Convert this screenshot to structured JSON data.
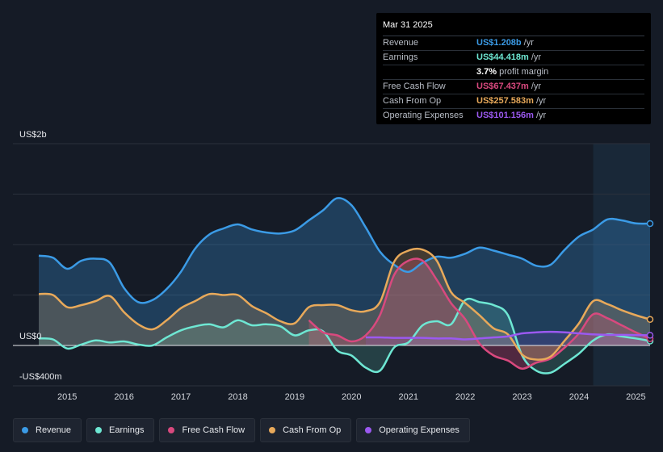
{
  "tooltip": {
    "date": "Mar 31 2025",
    "rows": [
      {
        "label": "Revenue",
        "value": "US$1.208b",
        "unit": "/yr",
        "color": "#3b9be6"
      },
      {
        "label": "Earnings",
        "value": "US$44.418m",
        "unit": "/yr",
        "color": "#6ee7d3"
      },
      {
        "label": "",
        "value": "3.7%",
        "unit": "profit margin",
        "color": "#ffffff"
      },
      {
        "label": "Free Cash Flow",
        "value": "US$67.437m",
        "unit": "/yr",
        "color": "#d9497e"
      },
      {
        "label": "Cash From Op",
        "value": "US$257.583m",
        "unit": "/yr",
        "color": "#e8a95a"
      },
      {
        "label": "Operating Expenses",
        "value": "US$101.156m",
        "unit": "/yr",
        "color": "#9b59f0"
      }
    ]
  },
  "legend": [
    {
      "label": "Revenue",
      "color": "#3b9be6"
    },
    {
      "label": "Earnings",
      "color": "#6ee7d3"
    },
    {
      "label": "Free Cash Flow",
      "color": "#d9497e"
    },
    {
      "label": "Cash From Op",
      "color": "#e8a95a"
    },
    {
      "label": "Operating Expenses",
      "color": "#9b59f0"
    }
  ],
  "chart_data": {
    "type": "area",
    "title": "",
    "xlabel": "",
    "ylabel": "",
    "ylim": [
      -400,
      2000
    ],
    "y_axis_labels": [
      "US$2b",
      "US$0",
      "-US$400m"
    ],
    "y_axis_values": [
      2000,
      0,
      -400
    ],
    "xlim": [
      2014.5,
      2025.25
    ],
    "x_ticks": [
      "2015",
      "2016",
      "2017",
      "2018",
      "2019",
      "2020",
      "2021",
      "2022",
      "2023",
      "2024",
      "2025"
    ],
    "x_tick_values": [
      2015,
      2016,
      2017,
      2018,
      2019,
      2020,
      2021,
      2022,
      2023,
      2024,
      2025
    ],
    "forecast_start": 2024.25,
    "series": [
      {
        "name": "Revenue",
        "color": "#3b9be6",
        "x": [
          2014.5,
          2014.75,
          2015.0,
          2015.25,
          2015.5,
          2015.75,
          2016.0,
          2016.25,
          2016.5,
          2016.75,
          2017.0,
          2017.25,
          2017.5,
          2017.75,
          2018.0,
          2018.25,
          2018.5,
          2018.75,
          2019.0,
          2019.25,
          2019.5,
          2019.75,
          2020.0,
          2020.25,
          2020.5,
          2020.75,
          2021.0,
          2021.25,
          2021.5,
          2021.75,
          2022.0,
          2022.25,
          2022.5,
          2022.75,
          2023.0,
          2023.25,
          2023.5,
          2023.75,
          2024.0,
          2024.25,
          2024.5,
          2024.75,
          2025.0,
          2025.25
        ],
        "values": [
          890,
          870,
          760,
          840,
          860,
          820,
          570,
          430,
          450,
          560,
          730,
          960,
          1100,
          1160,
          1200,
          1150,
          1120,
          1110,
          1140,
          1240,
          1340,
          1460,
          1390,
          1170,
          930,
          800,
          730,
          820,
          880,
          870,
          910,
          970,
          940,
          900,
          860,
          790,
          800,
          950,
          1080,
          1150,
          1250,
          1240,
          1210,
          1208
        ]
      },
      {
        "name": "Earnings",
        "color": "#6ee7d3",
        "x": [
          2014.5,
          2014.75,
          2015.0,
          2015.25,
          2015.5,
          2015.75,
          2016.0,
          2016.25,
          2016.5,
          2016.75,
          2017.0,
          2017.25,
          2017.5,
          2017.75,
          2018.0,
          2018.25,
          2018.5,
          2018.75,
          2019.0,
          2019.25,
          2019.5,
          2019.75,
          2020.0,
          2020.25,
          2020.5,
          2020.75,
          2021.0,
          2021.25,
          2021.5,
          2021.75,
          2022.0,
          2022.25,
          2022.5,
          2022.75,
          2023.0,
          2023.25,
          2023.5,
          2023.75,
          2024.0,
          2024.25,
          2024.5,
          2024.75,
          2025.0,
          2025.25
        ],
        "values": [
          70,
          60,
          -30,
          10,
          50,
          30,
          40,
          10,
          0,
          80,
          150,
          190,
          210,
          180,
          250,
          200,
          210,
          190,
          100,
          150,
          140,
          -50,
          -100,
          -220,
          -250,
          -20,
          30,
          200,
          240,
          210,
          450,
          430,
          400,
          300,
          -100,
          -250,
          -270,
          -180,
          -80,
          50,
          110,
          90,
          70,
          44
        ]
      },
      {
        "name": "Free Cash Flow",
        "color": "#d9497e",
        "x": [
          2019.25,
          2019.5,
          2019.75,
          2020.0,
          2020.25,
          2020.5,
          2020.75,
          2021.0,
          2021.25,
          2021.5,
          2021.75,
          2022.0,
          2022.25,
          2022.5,
          2022.75,
          2023.0,
          2023.25,
          2023.5,
          2023.75,
          2024.0,
          2024.25,
          2024.5,
          2024.75,
          2025.0,
          2025.25
        ],
        "values": [
          250,
          130,
          100,
          40,
          100,
          300,
          700,
          840,
          840,
          650,
          420,
          260,
          20,
          -100,
          -150,
          -230,
          -170,
          -130,
          -20,
          120,
          310,
          270,
          200,
          130,
          67
        ]
      },
      {
        "name": "Cash From Op",
        "color": "#e8a95a",
        "x": [
          2014.5,
          2014.75,
          2015.0,
          2015.25,
          2015.5,
          2015.75,
          2016.0,
          2016.25,
          2016.5,
          2016.75,
          2017.0,
          2017.25,
          2017.5,
          2017.75,
          2018.0,
          2018.25,
          2018.5,
          2018.75,
          2019.0,
          2019.25,
          2019.5,
          2019.75,
          2020.0,
          2020.25,
          2020.5,
          2020.75,
          2021.0,
          2021.25,
          2021.5,
          2021.75,
          2022.0,
          2022.25,
          2022.5,
          2022.75,
          2023.0,
          2023.25,
          2023.5,
          2023.75,
          2024.0,
          2024.25,
          2024.5,
          2024.75,
          2025.0,
          2025.25
        ],
        "values": [
          510,
          500,
          380,
          400,
          440,
          490,
          330,
          210,
          160,
          250,
          370,
          440,
          510,
          500,
          500,
          390,
          320,
          240,
          220,
          380,
          400,
          400,
          350,
          340,
          430,
          830,
          940,
          950,
          840,
          530,
          420,
          300,
          170,
          110,
          -90,
          -140,
          -110,
          50,
          220,
          440,
          410,
          350,
          300,
          258
        ]
      },
      {
        "name": "Operating Expenses",
        "color": "#9b59f0",
        "x": [
          2020.25,
          2020.5,
          2020.75,
          2021.0,
          2021.25,
          2021.5,
          2021.75,
          2022.0,
          2022.25,
          2022.5,
          2022.75,
          2023.0,
          2023.25,
          2023.5,
          2023.75,
          2024.0,
          2024.25,
          2024.5,
          2024.75,
          2025.0,
          2025.25
        ],
        "values": [
          80,
          80,
          75,
          75,
          75,
          70,
          70,
          60,
          70,
          80,
          90,
          120,
          130,
          135,
          130,
          120,
          110,
          105,
          105,
          103,
          101
        ]
      }
    ]
  }
}
